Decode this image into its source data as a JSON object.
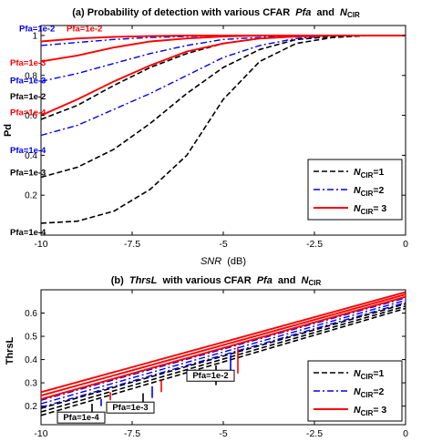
{
  "chart_data": [
    {
      "type": "line",
      "title": "(a) Probability of detection with various CFAR",
      "title_pfa": "Pfa",
      "title_and": "and",
      "title_n": "N",
      "title_sub": "CIR",
      "xlabel": "SNR",
      "xlabel_unit": "(dB)",
      "ylabel": "Pd",
      "xlim": [
        -10,
        0
      ],
      "ylim": [
        0,
        1.05
      ],
      "x_ticks": [
        -10,
        -7.5,
        -5,
        -2.5,
        0
      ],
      "x_tick_labels": [
        "-10",
        "-7.5",
        "-5",
        "-2.5",
        "0"
      ],
      "y_ticks": [
        0.2,
        0.4,
        0.6,
        0.8,
        1
      ],
      "y_tick_labels": [
        "0.2",
        "0.4",
        "0.6",
        "0.8",
        "1"
      ],
      "grid": false,
      "legend": {
        "placement": "right",
        "entries": [
          {
            "n": "N",
            "sub": "CIR",
            "val": "=1",
            "style": "dashed",
            "color": "#000000"
          },
          {
            "n": "N",
            "sub": "CIR",
            "val": "=2",
            "style": "dashdot",
            "color": "#0000ee"
          },
          {
            "n": "N",
            "sub": "CIR",
            "val": "= 3",
            "style": "solid",
            "color": "#ff0000"
          }
        ]
      },
      "x": [
        -10,
        -9,
        -8,
        -7,
        -6,
        -5,
        -4,
        -3,
        -2,
        -1,
        0
      ],
      "series": [
        {
          "group": 1,
          "pfa": "1e-4",
          "style": "dashed",
          "color": "#000000",
          "values": [
            0.06,
            0.07,
            0.12,
            0.23,
            0.4,
            0.68,
            0.87,
            0.96,
            0.99,
            1,
            1
          ]
        },
        {
          "group": 1,
          "pfa": "1e-3",
          "style": "dashed",
          "color": "#000000",
          "values": [
            0.29,
            0.34,
            0.43,
            0.56,
            0.71,
            0.84,
            0.93,
            0.98,
            0.995,
            1,
            1
          ]
        },
        {
          "group": 1,
          "pfa": "1e-2",
          "style": "dashed",
          "color": "#000000",
          "values": [
            0.58,
            0.65,
            0.75,
            0.84,
            0.91,
            0.96,
            0.985,
            0.995,
            1,
            1,
            1
          ]
        },
        {
          "group": 2,
          "pfa": "1e-4",
          "style": "dashdot",
          "color": "#0000ee",
          "values": [
            0.5,
            0.55,
            0.63,
            0.71,
            0.8,
            0.89,
            0.95,
            0.985,
            1,
            1,
            1
          ]
        },
        {
          "group": 2,
          "pfa": "1e-3",
          "style": "dashdot",
          "color": "#0000ee",
          "values": [
            0.77,
            0.81,
            0.86,
            0.91,
            0.95,
            0.98,
            0.99,
            1,
            1,
            1,
            1
          ]
        },
        {
          "group": 2,
          "pfa": "1e-2",
          "style": "dashdot",
          "color": "#0000ee",
          "values": [
            0.95,
            0.965,
            0.98,
            0.99,
            0.995,
            1,
            1,
            1,
            1,
            1,
            1
          ]
        },
        {
          "group": 3,
          "pfa": "1e-4",
          "style": "solid",
          "color": "#ff0000",
          "values": [
            0.6,
            0.68,
            0.77,
            0.85,
            0.92,
            0.96,
            0.985,
            0.995,
            1,
            1,
            1
          ]
        },
        {
          "group": 3,
          "pfa": "1e-3",
          "style": "solid",
          "color": "#ff0000",
          "values": [
            0.87,
            0.9,
            0.94,
            0.97,
            0.985,
            0.995,
            1,
            1,
            1,
            1,
            1
          ]
        },
        {
          "group": 3,
          "pfa": "1e-2",
          "style": "solid",
          "color": "#ff0000",
          "values": [
            0.97,
            0.985,
            0.993,
            0.997,
            1,
            1,
            1,
            1,
            1,
            1,
            1
          ]
        }
      ],
      "annotations": [
        {
          "text": "Pfa=1e-2",
          "color": "#0000ee",
          "at_x": -9.6,
          "at_y": 1.02
        },
        {
          "text": "Pfa=1e-2",
          "color": "#ff0000",
          "at_x": -8.3,
          "at_y": 1.02
        },
        {
          "text": "Pfa=1e-3",
          "color": "#ff0000",
          "at_x": -9.85,
          "at_y": 0.85
        },
        {
          "text": "Pfa=1e-3",
          "color": "#0000ee",
          "at_x": -9.85,
          "at_y": 0.76
        },
        {
          "text": "Pfa=1e-2",
          "color": "#000000",
          "at_x": -9.85,
          "at_y": 0.68
        },
        {
          "text": "Pfa=1e-4",
          "color": "#ff0000",
          "at_x": -9.85,
          "at_y": 0.6
        },
        {
          "text": "Pfa=1e-4",
          "color": "#0000ee",
          "at_x": -9.85,
          "at_y": 0.41
        },
        {
          "text": "Pfa=1e-3",
          "color": "#000000",
          "at_x": -9.85,
          "at_y": 0.3
        },
        {
          "text": "Pfa=1e-4",
          "color": "#000000",
          "at_x": -9.85,
          "at_y": 0.0
        }
      ]
    },
    {
      "type": "line",
      "title_b": "(b)",
      "title_thrs": "ThrsL",
      "title_with": "with various CFAR",
      "title_pfa": "Pfa",
      "title_and": "and",
      "title_n": "N",
      "title_sub": "CIR",
      "xlabel": "",
      "ylabel": "ThrsL",
      "xlim": [
        -10,
        0
      ],
      "ylim": [
        0.12,
        0.7
      ],
      "x_ticks": [
        -10,
        -7.5,
        -5,
        -2.5,
        0
      ],
      "x_tick_labels": [
        "-10",
        "-7.5",
        "-5",
        "-2.5",
        "0"
      ],
      "y_ticks": [
        0.2,
        0.3,
        0.4,
        0.5,
        0.6
      ],
      "y_tick_labels": [
        "0.2",
        "0.3",
        "0.4",
        "0.5",
        "0.6"
      ],
      "grid": false,
      "legend": {
        "placement": "bottom-right",
        "entries": [
          {
            "n": "N",
            "sub": "CIR",
            "val": "=1",
            "style": "dashed",
            "color": "#000000"
          },
          {
            "n": "N",
            "sub": "CIR",
            "val": "=2",
            "style": "dashdot",
            "color": "#0000ee"
          },
          {
            "n": "N",
            "sub": "CIR",
            "val": "= 3",
            "style": "solid",
            "color": "#ff0000"
          }
        ]
      },
      "x": [
        -10,
        0
      ],
      "series": [
        {
          "group": 1,
          "pfa": "1e-4",
          "style": "dashed",
          "color": "#000000",
          "values": [
            0.16,
            0.62
          ]
        },
        {
          "group": 1,
          "pfa": "1e-3",
          "style": "dashed",
          "color": "#000000",
          "values": [
            0.175,
            0.63
          ]
        },
        {
          "group": 1,
          "pfa": "1e-2",
          "style": "dashed",
          "color": "#000000",
          "values": [
            0.19,
            0.64
          ]
        },
        {
          "group": 2,
          "pfa": "1e-4",
          "style": "dashdot",
          "color": "#0000ee",
          "values": [
            0.195,
            0.645
          ]
        },
        {
          "group": 2,
          "pfa": "1e-3",
          "style": "dashdot",
          "color": "#0000ee",
          "values": [
            0.21,
            0.655
          ]
        },
        {
          "group": 2,
          "pfa": "1e-2",
          "style": "dashdot",
          "color": "#0000ee",
          "values": [
            0.225,
            0.665
          ]
        },
        {
          "group": 3,
          "pfa": "1e-4",
          "style": "solid",
          "color": "#ff0000",
          "values": [
            0.23,
            0.67
          ]
        },
        {
          "group": 3,
          "pfa": "1e-3",
          "style": "solid",
          "color": "#ff0000",
          "values": [
            0.245,
            0.68
          ]
        },
        {
          "group": 3,
          "pfa": "1e-2",
          "style": "solid",
          "color": "#ff0000",
          "values": [
            0.26,
            0.69
          ]
        }
      ],
      "markers": [
        {
          "x": -8.6,
          "color": "#000000",
          "y_from": 0.175,
          "y_to": 0.21
        },
        {
          "x": -8.35,
          "color": "#0000ee",
          "y_from": 0.2,
          "y_to": 0.23
        },
        {
          "x": -8.1,
          "color": "#ff0000",
          "y_from": 0.225,
          "y_to": 0.26
        },
        {
          "x": -7.2,
          "color": "#000000",
          "y_from": 0.21,
          "y_to": 0.255
        },
        {
          "x": -6.95,
          "color": "#0000ee",
          "y_from": 0.235,
          "y_to": 0.285
        },
        {
          "x": -6.7,
          "color": "#ff0000",
          "y_from": 0.26,
          "y_to": 0.31
        },
        {
          "x": -5.2,
          "color": "#000000",
          "y_from": 0.29,
          "y_to": 0.375
        },
        {
          "x": -4.8,
          "color": "#0000ee",
          "y_from": 0.32,
          "y_to": 0.42
        },
        {
          "x": -4.6,
          "color": "#ff0000",
          "y_from": 0.34,
          "y_to": 0.455
        }
      ],
      "annotations": [
        {
          "text": "Pfa=1e-4",
          "at_x": -9.55,
          "at_y": 0.135
        },
        {
          "text": "Pfa=1e-3",
          "at_x": -8.2,
          "at_y": 0.178
        },
        {
          "text": "Pfa=1e-2",
          "at_x": -6.0,
          "at_y": 0.315
        }
      ]
    }
  ]
}
